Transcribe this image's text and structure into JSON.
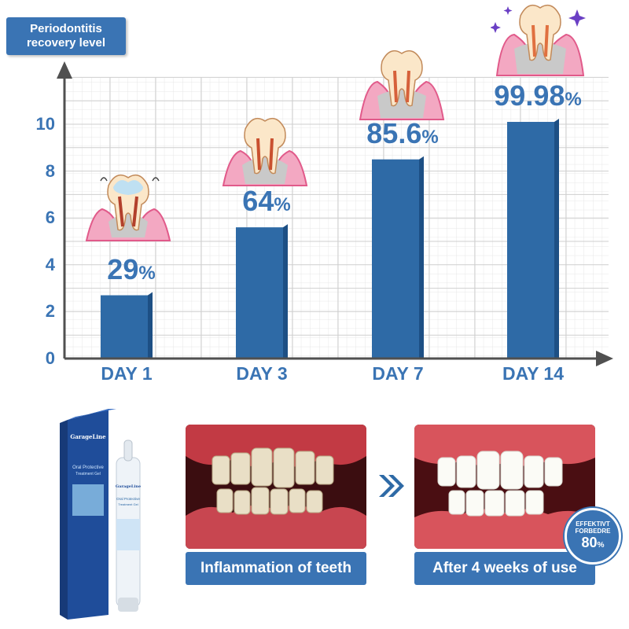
{
  "badge": {
    "line1": "Periodontitis",
    "line2": "recovery level"
  },
  "chart_data": {
    "type": "bar",
    "title": "",
    "xlabel": "",
    "ylabel": "Periodontitis recovery level",
    "categories": [
      "DAY 1",
      "DAY 3",
      "DAY 7",
      "DAY 14"
    ],
    "values": [
      2.7,
      5.6,
      8.5,
      10.1
    ],
    "data_labels": [
      {
        "number": "29",
        "unit": "%"
      },
      {
        "number": "64",
        "unit": "%"
      },
      {
        "number": "85.6",
        "unit": "%"
      },
      {
        "number": "99.98",
        "unit": "%"
      }
    ],
    "y_ticks": [
      "0",
      "2",
      "4",
      "6",
      "8",
      "10"
    ],
    "ylim": [
      0,
      12
    ],
    "grid": true,
    "bar_color": "#2e6aa6",
    "accent_color": "#3a74b4"
  },
  "product": {
    "brand": "GarageLine",
    "name_line1": "Oral Protective",
    "name_line2": "Treatment Gel",
    "pen_brand": "GarageLine",
    "pen_line1": "Oral Protective",
    "pen_line2": "Treatment Gel"
  },
  "before": {
    "caption": "Inflammation of teeth"
  },
  "after": {
    "caption": "After 4 weeks of use"
  },
  "seal": {
    "line1": "EFFEKTIVT",
    "line2": "FORBEDRE",
    "number": "80",
    "unit": "%"
  }
}
